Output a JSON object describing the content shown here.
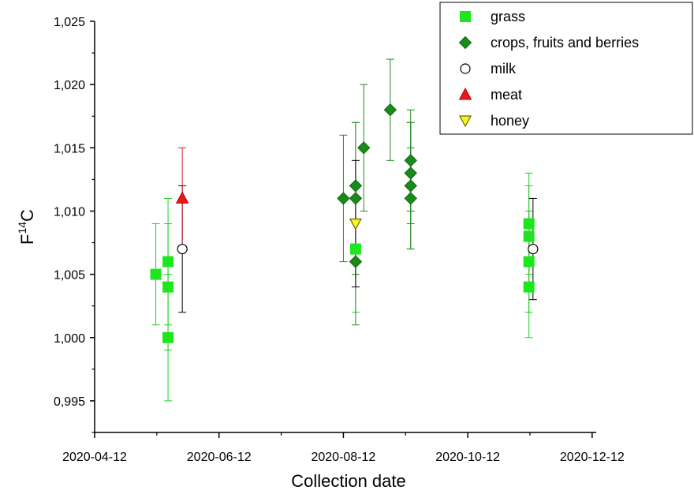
{
  "chart_data": {
    "type": "scatter",
    "xlabel": "Collection date",
    "ylabel_main": "F",
    "ylabel_sup": "14",
    "ylabel_tail": "C",
    "xlim": [
      "2020-04-12",
      "2020-12-14"
    ],
    "ylim": [
      0.9925,
      1.025
    ],
    "x_ticks": [
      "2020-04-12",
      "2020-06-12",
      "2020-08-12",
      "2020-10-12",
      "2020-12-12"
    ],
    "y_ticks": [
      0.995,
      1.0,
      1.005,
      1.01,
      1.015,
      1.02,
      1.025
    ],
    "y_tick_labels": [
      "0,995",
      "1,000",
      "1,005",
      "1,010",
      "1,015",
      "1,020",
      "1,025"
    ],
    "legend_position": "top-right",
    "series": [
      {
        "name": "grass",
        "marker": "square",
        "color": "#1ee61e",
        "stroke": "#1ee61e",
        "error_color": "#22cc22",
        "points": [
          {
            "x": "2020-05-12",
            "y": 1.005,
            "err": 0.004
          },
          {
            "x": "2020-05-18",
            "y": 1.006,
            "err": 0.005
          },
          {
            "x": "2020-05-18",
            "y": 1.004,
            "err": 0.005
          },
          {
            "x": "2020-05-18",
            "y": 1.0,
            "err": 0.005
          },
          {
            "x": "2020-08-18",
            "y": 1.007,
            "err": 0.005
          },
          {
            "x": "2020-11-11",
            "y": 1.009,
            "err": 0.004
          },
          {
            "x": "2020-11-11",
            "y": 1.008,
            "err": 0.004
          },
          {
            "x": "2020-11-11",
            "y": 1.006,
            "err": 0.004
          },
          {
            "x": "2020-11-11",
            "y": 1.004,
            "err": 0.004
          }
        ]
      },
      {
        "name": "crops, fruits and berries",
        "marker": "diamond",
        "color": "#1a8a1a",
        "stroke": "#0f6b0f",
        "error_color": "#228b22",
        "points": [
          {
            "x": "2020-08-12",
            "y": 1.011,
            "err": 0.005
          },
          {
            "x": "2020-08-18",
            "y": 1.012,
            "err": 0.005
          },
          {
            "x": "2020-08-18",
            "y": 1.011,
            "err": 0.006
          },
          {
            "x": "2020-08-18",
            "y": 1.006,
            "err": 0.005
          },
          {
            "x": "2020-08-22",
            "y": 1.015,
            "err": 0.005
          },
          {
            "x": "2020-09-04",
            "y": 1.018,
            "err": 0.004
          },
          {
            "x": "2020-09-14",
            "y": 1.014,
            "err": 0.004
          },
          {
            "x": "2020-09-14",
            "y": 1.013,
            "err": 0.004
          },
          {
            "x": "2020-09-14",
            "y": 1.012,
            "err": 0.005
          },
          {
            "x": "2020-09-14",
            "y": 1.011,
            "err": 0.004
          }
        ]
      },
      {
        "name": "milk",
        "marker": "circle",
        "color": "#ffffff",
        "stroke": "#000000",
        "error_color": "#000000",
        "points": [
          {
            "x": "2020-05-25",
            "y": 1.007,
            "err": 0.005
          },
          {
            "x": "2020-11-13",
            "y": 1.007,
            "err": 0.004
          }
        ]
      },
      {
        "name": "meat",
        "marker": "triangle-up",
        "color": "#e61a1a",
        "stroke": "#c00000",
        "error_color": "#d42020",
        "points": [
          {
            "x": "2020-05-25",
            "y": 1.011,
            "err": 0.004
          }
        ]
      },
      {
        "name": "honey",
        "marker": "triangle-down",
        "color": "#f5f51e",
        "stroke": "#666600",
        "error_color": "#000000",
        "points": [
          {
            "x": "2020-08-18",
            "y": 1.009,
            "err": 0.005
          }
        ]
      }
    ]
  }
}
